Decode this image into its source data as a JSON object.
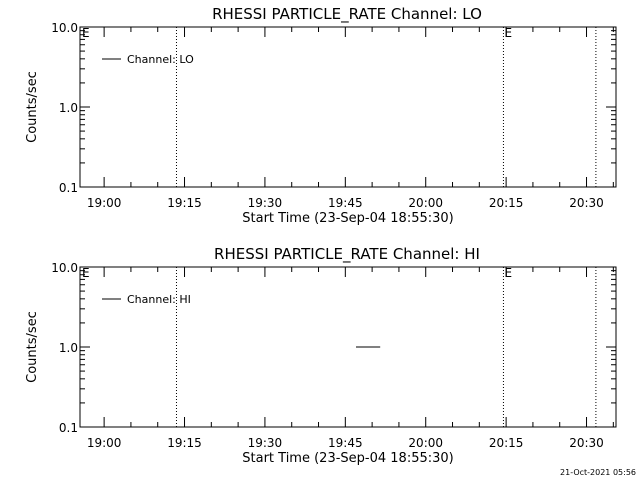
{
  "chart_data": [
    {
      "type": "line",
      "title": "RHESSI PARTICLE_RATE Channel: LO",
      "xlabel": "Start Time (23-Sep-04 18:55:30)",
      "ylabel": "Counts/sec",
      "y_scale": "log",
      "ylim": [
        0.1,
        10.0
      ],
      "xlim": [
        "18:55:30",
        "20:35:30"
      ],
      "x_tick_labels": [
        "19:00",
        "19:15",
        "19:30",
        "19:45",
        "20:00",
        "20:15",
        "20:30"
      ],
      "y_tick_labels": [
        "0.1",
        "1.0",
        "10.0"
      ],
      "legend": {
        "position": "top-left",
        "entries": [
          {
            "label": "Channel: LO"
          }
        ]
      },
      "markers": [
        {
          "time": "19:13:30",
          "label": ""
        },
        {
          "time": "20:14:30",
          "label": "E"
        },
        {
          "time": "20:31:45",
          "label": ""
        }
      ],
      "start_label": "E",
      "series": [
        {
          "name": "Channel: LO",
          "points": []
        }
      ]
    },
    {
      "type": "line",
      "title": "RHESSI PARTICLE_RATE Channel: HI",
      "xlabel": "Start Time (23-Sep-04 18:55:30)",
      "ylabel": "Counts/sec",
      "y_scale": "log",
      "ylim": [
        0.1,
        10.0
      ],
      "xlim": [
        "18:55:30",
        "20:35:30"
      ],
      "x_tick_labels": [
        "19:00",
        "19:15",
        "19:30",
        "19:45",
        "20:00",
        "20:15",
        "20:30"
      ],
      "y_tick_labels": [
        "0.1",
        "1.0",
        "10.0"
      ],
      "legend": {
        "position": "top-left",
        "entries": [
          {
            "label": "Channel: HI"
          }
        ]
      },
      "markers": [
        {
          "time": "19:13:30",
          "label": ""
        },
        {
          "time": "20:14:30",
          "label": "E"
        },
        {
          "time": "20:31:45",
          "label": ""
        }
      ],
      "start_label": "E",
      "series": [
        {
          "name": "Channel: HI",
          "points": [
            {
              "x": "19:47:00",
              "y": 1.0
            },
            {
              "x": "19:51:30",
              "y": 1.0
            }
          ]
        }
      ]
    }
  ],
  "footer": {
    "timestamp": "21-Oct-2021 05:56"
  }
}
